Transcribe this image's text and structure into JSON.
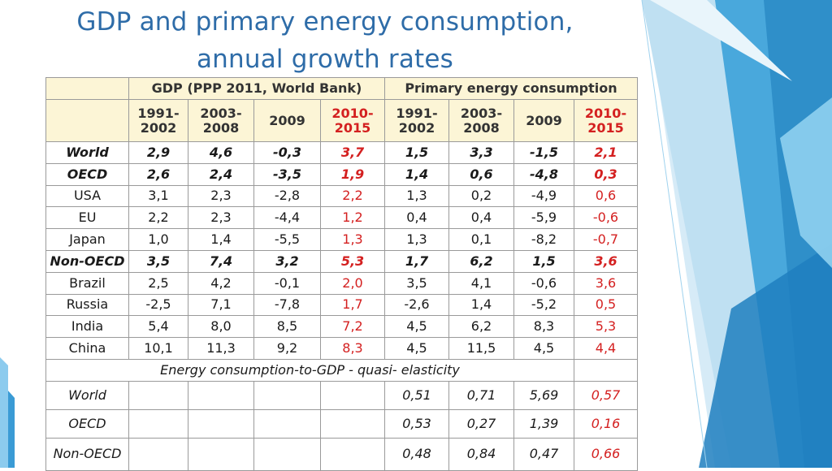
{
  "title": {
    "line1": "GDP and primary energy consumption,",
    "line2": "annual growth rates"
  },
  "colors": {
    "title": "#2e6ca8",
    "highlight": "#d42020",
    "header_bg": "#fcf5d6"
  },
  "table": {
    "group_headers": {
      "gdp": "GDP (PPP 2011, World Bank)",
      "energy": "Primary energy consumption"
    },
    "period_headers": {
      "gdp": [
        {
          "l1": "1991-",
          "l2": "2002"
        },
        {
          "l1": "2003-",
          "l2": "2008"
        },
        {
          "l1": "2009",
          "l2": ""
        },
        {
          "l1": "2010-",
          "l2": "2015"
        }
      ],
      "energy": [
        {
          "l1": "1991-",
          "l2": "2002"
        },
        {
          "l1": "2003-",
          "l2": "2008"
        },
        {
          "l1": "2009",
          "l2": ""
        },
        {
          "l1": "2010-",
          "l2": "2015"
        }
      ]
    },
    "rows": [
      {
        "label": "World",
        "gdp": [
          "2,9",
          "4,6",
          "-0,3",
          "3,7"
        ],
        "energy": [
          "1,5",
          "3,3",
          "-1,5",
          "2,1"
        ]
      },
      {
        "label": "OECD",
        "gdp": [
          "2,6",
          "2,4",
          "-3,5",
          "1,9"
        ],
        "energy": [
          "1,4",
          "0,6",
          "-4,8",
          "0,3"
        ]
      },
      {
        "label": "USA",
        "gdp": [
          "3,1",
          "2,3",
          "-2,8",
          "2,2"
        ],
        "energy": [
          "1,3",
          "0,2",
          "-4,9",
          "0,6"
        ]
      },
      {
        "label": "EU",
        "gdp": [
          "2,2",
          "2,3",
          "-4,4",
          "1,2"
        ],
        "energy": [
          "0,4",
          "0,4",
          "-5,9",
          "-0,6"
        ]
      },
      {
        "label": "Japan",
        "gdp": [
          "1,0",
          "1,4",
          "-5,5",
          "1,3"
        ],
        "energy": [
          "1,3",
          "0,1",
          "-8,2",
          "-0,7"
        ]
      },
      {
        "label": "Non-OECD",
        "gdp": [
          "3,5",
          "7,4",
          "3,2",
          "5,3"
        ],
        "energy": [
          "1,7",
          "6,2",
          "1,5",
          "3,6"
        ]
      },
      {
        "label": "Brazil",
        "gdp": [
          "2,5",
          "4,2",
          "-0,1",
          "2,0"
        ],
        "energy": [
          "3,5",
          "4,1",
          "-0,6",
          "3,6"
        ]
      },
      {
        "label": "Russia",
        "gdp": [
          "-2,5",
          "7,1",
          "-7,8",
          "1,7"
        ],
        "energy": [
          "-2,6",
          "1,4",
          "-5,2",
          "0,5"
        ]
      },
      {
        "label": "India",
        "gdp": [
          "5,4",
          "8,0",
          "8,5",
          "7,2"
        ],
        "energy": [
          "4,5",
          "6,2",
          "8,3",
          "5,3"
        ]
      },
      {
        "label": "China",
        "gdp": [
          "10,1",
          "11,3",
          "9,2",
          "8,3"
        ],
        "energy": [
          "4,5",
          "11,5",
          "4,5",
          "4,4"
        ]
      }
    ],
    "elasticity": {
      "label": "Energy consumption-to-GDP  - quasi- elasticity",
      "rows": [
        {
          "label": "World",
          "values": [
            "0,51",
            "0,71",
            "5,69",
            "0,57"
          ]
        },
        {
          "label": "OECD",
          "values": [
            "0,53",
            "0,27",
            "1,39",
            "0,16"
          ]
        },
        {
          "label": "Non-OECD",
          "values": [
            "0,48",
            "0,84",
            "0,47",
            "0,66"
          ]
        }
      ]
    }
  }
}
